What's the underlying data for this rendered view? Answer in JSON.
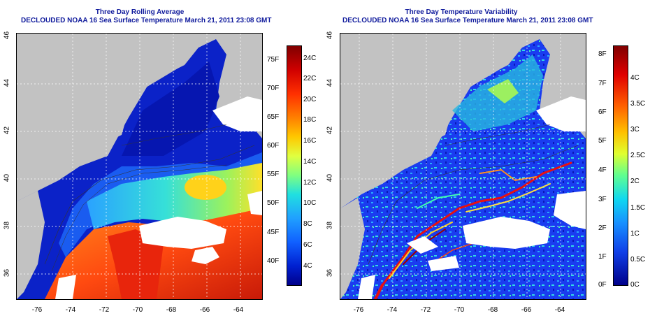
{
  "left_panel": {
    "title_line1": "Three Day Rolling Average",
    "title_line2": "DECLOUDED NOAA 16 Sea Surface Temperature March 21, 2011 23:08 GMT",
    "x_ticks": [
      "-76",
      "-74",
      "-72",
      "-70",
      "-68",
      "-66",
      "-64"
    ],
    "y_ticks": [
      "46",
      "44",
      "42",
      "40",
      "38",
      "36"
    ],
    "colorbar_f": [
      "75F",
      "70F",
      "65F",
      "60F",
      "55F",
      "50F",
      "45F",
      "40F"
    ],
    "colorbar_c": [
      "24C",
      "22C",
      "20C",
      "18C",
      "16C",
      "14C",
      "12C",
      "10C",
      "8C",
      "6C",
      "4C"
    ],
    "contour_labels": [
      "200",
      "200",
      "20",
      "200"
    ]
  },
  "right_panel": {
    "title_line1": "Three Day Temperature Variability",
    "title_line2": "DECLOUDED NOAA 16 Sea Surface Temperature March 21, 2011 23:08 GMT",
    "x_ticks": [
      "-76",
      "-74",
      "-72",
      "-70",
      "-68",
      "-66",
      "-64"
    ],
    "y_ticks": [
      "46",
      "44",
      "42",
      "40",
      "38",
      "36"
    ],
    "colorbar_f": [
      "8F",
      "7F",
      "6F",
      "5F",
      "4F",
      "3F",
      "2F",
      "1F",
      "0F"
    ],
    "colorbar_c": [
      "4C",
      "3.5C",
      "3C",
      "2.5C",
      "2C",
      "1.5C",
      "1C",
      "0.5C",
      "0C"
    ],
    "contour_labels": [
      "200",
      "200",
      "200",
      "200"
    ]
  },
  "colors": {
    "title": "#0f1a9c",
    "land": "#c2c2c2",
    "cloud": "#ffffff"
  }
}
